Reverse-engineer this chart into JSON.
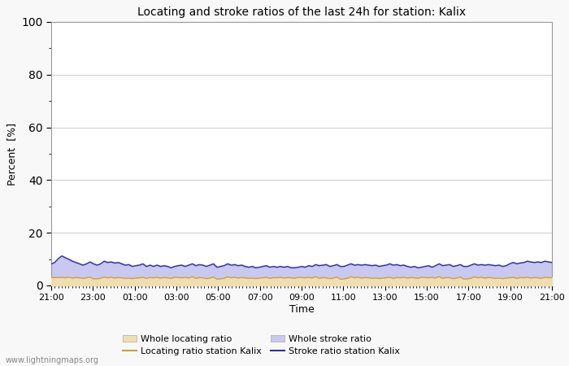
{
  "title": "Locating and stroke ratios of the last 24h for station: Kalix",
  "xlabel": "Time",
  "ylabel": "Percent  [%]",
  "ylim": [
    0,
    100
  ],
  "yticks": [
    0,
    20,
    40,
    60,
    80,
    100
  ],
  "x_tick_labels": [
    "21:00",
    "23:00",
    "01:00",
    "03:00",
    "05:00",
    "07:00",
    "09:00",
    "11:00",
    "13:00",
    "15:00",
    "17:00",
    "19:00",
    "21:00"
  ],
  "background_color": "#f8f8f8",
  "plot_bg_color": "#ffffff",
  "grid_color": "#cccccc",
  "watermark": "www.lightningmaps.org",
  "whole_locating_color": "#f0deb0",
  "whole_stroke_color": "#c8c8f0",
  "locating_line_color": "#c8a040",
  "stroke_line_color": "#3030a0",
  "whole_locating_ratio": [
    3.2,
    3.1,
    3.0,
    3.2,
    2.9,
    3.5,
    2.8,
    3.1,
    3.0,
    2.7,
    2.9,
    3.3,
    2.5,
    2.6,
    2.8,
    3.4,
    3.0,
    3.2,
    2.9,
    3.1,
    3.0,
    2.8,
    2.9,
    2.7,
    2.9,
    3.0,
    3.2,
    2.8,
    3.1,
    3.0,
    3.2,
    2.9,
    3.1,
    3.0,
    2.8,
    3.2,
    3.1,
    3.0,
    3.2,
    2.9,
    3.5,
    2.8,
    3.1,
    3.0,
    2.7,
    2.9,
    3.3,
    2.5,
    2.6,
    2.8,
    3.4,
    3.0,
    3.2,
    2.9,
    3.1,
    3.0,
    2.8,
    2.9,
    2.7,
    2.9,
    3.0,
    3.2,
    2.8,
    3.1,
    3.0,
    3.2,
    2.9,
    3.1,
    3.0,
    2.8,
    3.2,
    3.1,
    3.0,
    3.2,
    2.9,
    3.5,
    2.8,
    3.1,
    3.0,
    2.7,
    2.9,
    3.3,
    2.5,
    2.6,
    2.8,
    3.4,
    3.0,
    3.2,
    2.9,
    3.1,
    3.0,
    2.8,
    2.9,
    2.7,
    2.9,
    3.0,
    3.2,
    2.8,
    3.1,
    3.0,
    3.2,
    2.9,
    3.1,
    3.0,
    2.8,
    3.2,
    3.1,
    3.0,
    3.2,
    2.9,
    3.5,
    2.8,
    3.1,
    3.0,
    2.7,
    2.9,
    3.3,
    2.5,
    2.6,
    2.8,
    3.4,
    3.0,
    3.2,
    2.9,
    3.1,
    3.0,
    2.8,
    2.9,
    2.7,
    2.9,
    3.0,
    3.2,
    2.8,
    3.1,
    3.0,
    3.2,
    2.9,
    3.1,
    3.0,
    2.8,
    3.2,
    3.1,
    3.0
  ],
  "whole_stroke_ratio": [
    8.5,
    9.0,
    10.5,
    11.5,
    10.8,
    10.2,
    9.5,
    9.0,
    8.5,
    8.0,
    8.5,
    9.2,
    8.5,
    8.0,
    8.5,
    9.5,
    9.0,
    9.2,
    8.8,
    9.0,
    8.5,
    8.0,
    8.2,
    7.5,
    7.8,
    8.0,
    8.5,
    7.5,
    8.0,
    7.5,
    8.0,
    7.5,
    7.8,
    7.5,
    7.0,
    7.5,
    7.8,
    8.0,
    7.5,
    8.0,
    8.5,
    7.8,
    8.2,
    8.0,
    7.5,
    8.0,
    8.5,
    7.2,
    7.5,
    7.8,
    8.5,
    8.0,
    8.2,
    7.8,
    8.0,
    7.5,
    7.2,
    7.5,
    7.0,
    7.2,
    7.5,
    7.8,
    7.2,
    7.5,
    7.2,
    7.5,
    7.2,
    7.5,
    7.0,
    7.0,
    7.2,
    7.5,
    7.2,
    7.8,
    7.5,
    8.2,
    7.8,
    8.0,
    8.2,
    7.5,
    7.8,
    8.2,
    7.5,
    7.5,
    8.0,
    8.5,
    8.0,
    8.2,
    8.0,
    8.2,
    8.0,
    7.8,
    8.0,
    7.5,
    7.8,
    8.0,
    8.5,
    8.0,
    8.2,
    7.8,
    8.0,
    7.5,
    7.2,
    7.5,
    7.0,
    7.2,
    7.5,
    7.8,
    7.2,
    7.8,
    8.5,
    7.8,
    8.0,
    8.2,
    7.5,
    7.8,
    8.2,
    7.5,
    7.5,
    8.0,
    8.5,
    8.0,
    8.2,
    8.0,
    8.2,
    8.0,
    7.8,
    8.0,
    7.5,
    7.8,
    8.5,
    9.0,
    8.5,
    8.8,
    9.0,
    9.5,
    9.2,
    9.0,
    9.2,
    9.0,
    9.5,
    9.2,
    9.0
  ],
  "locating_line_ratio": [
    3.0,
    3.0,
    3.0,
    3.1,
    2.9,
    3.2,
    2.8,
    3.0,
    2.9,
    2.7,
    2.9,
    3.2,
    2.5,
    2.5,
    2.7,
    3.2,
    2.9,
    3.1,
    2.8,
    3.0,
    2.9,
    2.7,
    2.8,
    2.6,
    2.8,
    2.9,
    3.1,
    2.7,
    3.0,
    2.9,
    3.1,
    2.8,
    3.0,
    2.9,
    2.7,
    3.1,
    3.0,
    2.9,
    3.1,
    2.8,
    3.4,
    2.7,
    3.0,
    2.9,
    2.6,
    2.8,
    3.2,
    2.4,
    2.5,
    2.7,
    3.3,
    2.9,
    3.1,
    2.8,
    3.0,
    2.9,
    2.7,
    2.8,
    2.6,
    2.8,
    2.9,
    3.1,
    2.7,
    3.0,
    2.9,
    3.1,
    2.8,
    3.0,
    2.9,
    2.7,
    3.1,
    3.0,
    2.9,
    3.1,
    2.8,
    3.4,
    2.7,
    3.0,
    2.9,
    2.6,
    2.8,
    3.2,
    2.4,
    2.5,
    2.7,
    3.3,
    2.9,
    3.1,
    2.8,
    3.0,
    2.9,
    2.7,
    2.8,
    2.6,
    2.8,
    2.9,
    3.1,
    2.7,
    3.0,
    2.9,
    3.1,
    2.8,
    3.0,
    2.9,
    2.7,
    3.1,
    3.0,
    2.9,
    3.1,
    2.8,
    3.4,
    2.7,
    3.0,
    2.9,
    2.6,
    2.8,
    3.2,
    2.4,
    2.5,
    2.7,
    3.3,
    2.9,
    3.1,
    2.8,
    3.0,
    2.9,
    2.7,
    2.8,
    2.6,
    2.8,
    2.9,
    3.1,
    2.7,
    3.0,
    2.9,
    3.1,
    2.8,
    3.0,
    2.9,
    2.7,
    3.1,
    3.0,
    2.9
  ],
  "stroke_line_ratio": [
    8.2,
    8.7,
    10.2,
    11.2,
    10.5,
    9.9,
    9.2,
    8.7,
    8.2,
    7.7,
    8.2,
    8.9,
    8.2,
    7.7,
    8.2,
    9.2,
    8.7,
    8.9,
    8.5,
    8.7,
    8.2,
    7.7,
    7.9,
    7.2,
    7.5,
    7.7,
    8.2,
    7.2,
    7.7,
    7.2,
    7.7,
    7.2,
    7.5,
    7.2,
    6.7,
    7.2,
    7.5,
    7.7,
    7.2,
    7.7,
    8.2,
    7.5,
    7.9,
    7.7,
    7.2,
    7.7,
    8.2,
    6.9,
    7.2,
    7.5,
    8.2,
    7.7,
    7.9,
    7.5,
    7.7,
    7.2,
    6.9,
    7.2,
    6.7,
    6.9,
    7.2,
    7.5,
    6.9,
    7.2,
    6.9,
    7.2,
    6.9,
    7.2,
    6.7,
    6.7,
    6.9,
    7.2,
    6.9,
    7.5,
    7.2,
    7.9,
    7.5,
    7.7,
    7.9,
    7.2,
    7.5,
    7.9,
    7.2,
    7.2,
    7.7,
    8.2,
    7.7,
    7.9,
    7.7,
    7.9,
    7.7,
    7.5,
    7.7,
    7.2,
    7.5,
    7.7,
    8.2,
    7.7,
    7.9,
    7.5,
    7.7,
    7.2,
    6.9,
    7.2,
    6.7,
    6.9,
    7.2,
    7.5,
    6.9,
    7.5,
    8.2,
    7.5,
    7.7,
    7.9,
    7.2,
    7.5,
    7.9,
    7.2,
    7.2,
    7.7,
    8.2,
    7.7,
    7.9,
    7.7,
    7.9,
    7.7,
    7.5,
    7.7,
    7.2,
    7.5,
    8.2,
    8.7,
    8.2,
    8.5,
    8.7,
    9.2,
    8.9,
    8.7,
    8.9,
    8.7,
    9.2,
    8.9,
    8.7
  ]
}
